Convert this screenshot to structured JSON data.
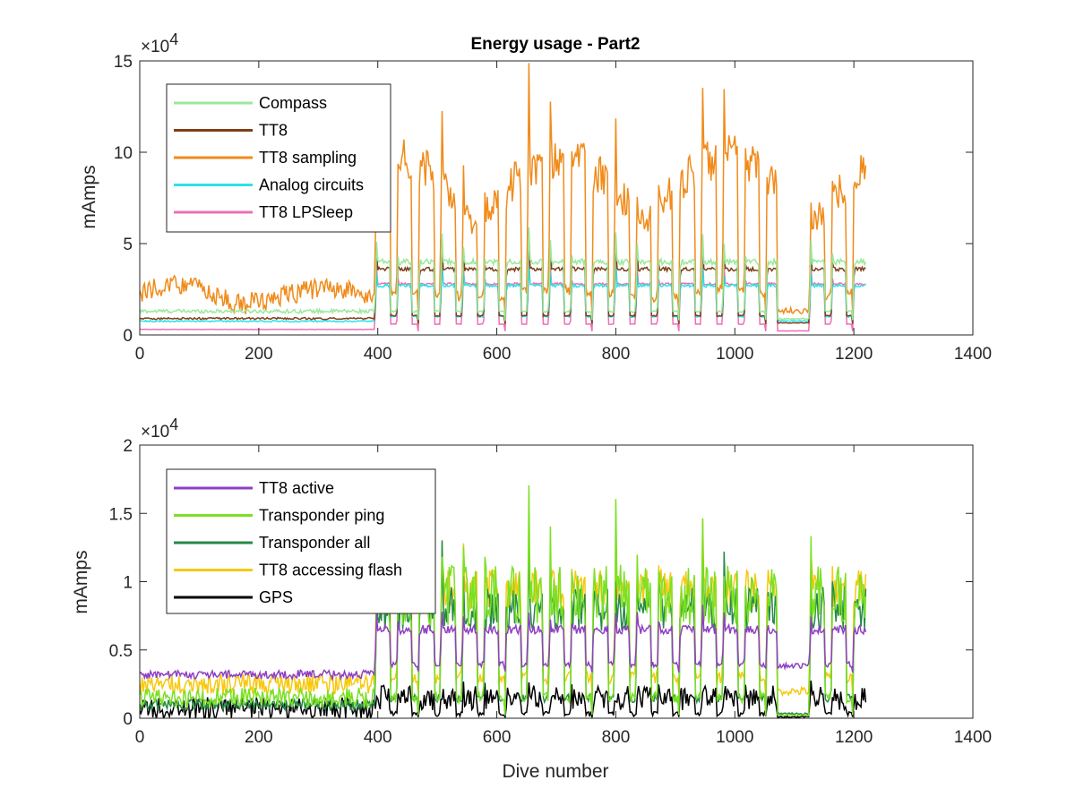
{
  "chart_data": [
    {
      "type": "line",
      "title": "Energy usage - Part2",
      "xlabel": "",
      "ylabel": "mAmps",
      "xlim": [
        0,
        1400
      ],
      "ylim": [
        0,
        150000
      ],
      "y_exponent_label": "×10",
      "y_exponent_power": "4",
      "xticks": [
        0,
        200,
        400,
        600,
        800,
        1000,
        1200,
        1400
      ],
      "xtick_labels": [
        "0",
        "200",
        "400",
        "600",
        "800",
        "1000",
        "1200",
        "1400"
      ],
      "yticks": [
        0,
        50000,
        100000,
        150000
      ],
      "ytick_labels": [
        "0",
        "5",
        "10",
        "15"
      ],
      "grid": false,
      "legend_position": "top-left",
      "x_end": 1220,
      "series": [
        {
          "name": "Compass",
          "color": "#9be89b",
          "base1": 13000,
          "base2": 40000,
          "low2": 8000,
          "noise": 0.08
        },
        {
          "name": "TT8",
          "color": "#7f3f18",
          "base1": 9000,
          "base2": 36000,
          "low2": 6000,
          "noise": 0.06
        },
        {
          "name": "TT8 sampling",
          "color": "#f08b1a",
          "base1": 22000,
          "base2": 75000,
          "low2": 12000,
          "noise": 0.25
        },
        {
          "name": "Analog circuits",
          "color": "#2be3e8",
          "base1": 7500,
          "base2": 27000,
          "low2": 7000,
          "noise": 0.06
        },
        {
          "name": "TT8 LPSleep",
          "color": "#ee6fb8",
          "base1": 3000,
          "base2": 28000,
          "low2": 2000,
          "noise": 0.04
        }
      ]
    },
    {
      "type": "line",
      "title": "",
      "xlabel": "Dive number",
      "ylabel": "mAmps",
      "xlim": [
        0,
        1400
      ],
      "ylim": [
        0,
        20000
      ],
      "y_exponent_label": "×10",
      "y_exponent_power": "4",
      "xticks": [
        0,
        200,
        400,
        600,
        800,
        1000,
        1200,
        1400
      ],
      "xtick_labels": [
        "0",
        "200",
        "400",
        "600",
        "800",
        "1000",
        "1200",
        "1400"
      ],
      "yticks": [
        0,
        5000,
        10000,
        15000,
        20000
      ],
      "ytick_labels": [
        "0",
        "0.5",
        "1",
        "1.5",
        "2"
      ],
      "grid": false,
      "legend_position": "top-left",
      "x_end": 1220,
      "series": [
        {
          "name": "TT8 active",
          "color": "#8e3fc4",
          "base1": 3200,
          "base2": 6500,
          "low2": 3500,
          "noise": 0.1
        },
        {
          "name": "Transponder ping",
          "color": "#7be023",
          "base1": 1500,
          "base2": 9000,
          "low2": 200,
          "noise": 0.5
        },
        {
          "name": "Transponder all",
          "color": "#258a48",
          "base1": 1000,
          "base2": 8000,
          "low2": 300,
          "noise": 0.4
        },
        {
          "name": "TT8 accessing flash",
          "color": "#f7c80d",
          "base1": 2500,
          "base2": 9500,
          "low2": 1800,
          "noise": 0.3
        },
        {
          "name": "GPS",
          "color": "#000000",
          "base1": 700,
          "base2": 1500,
          "low2": 100,
          "noise": 1.2
        }
      ]
    }
  ]
}
